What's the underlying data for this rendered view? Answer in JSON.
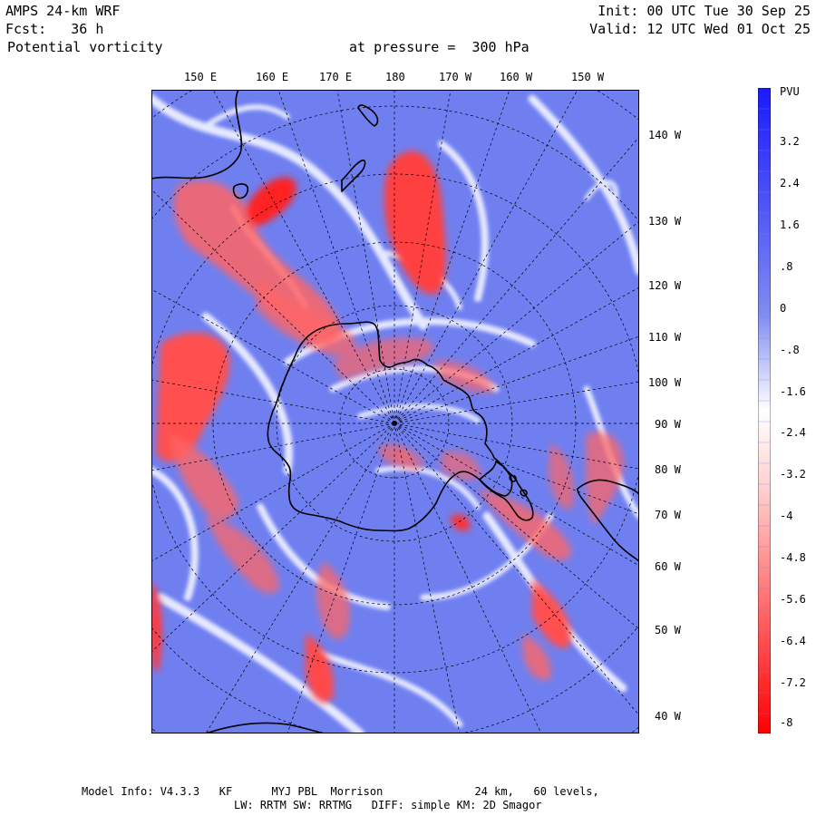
{
  "header": {
    "model": "AMPS 24-km WRF",
    "forecast": "Fcst:   36 h",
    "variable": "Potential vorticity",
    "pressure": "at pressure =  300 hPa",
    "init": "Init: 00 UTC Tue 30 Sep 25",
    "valid": "Valid: 12 UTC Wed 01 Oct 25"
  },
  "top_longitudes": [
    "150 E",
    "160 E",
    "170 E",
    "180",
    "170 W",
    "160 W",
    "150 W"
  ],
  "right_longitudes": [
    "140 W",
    "130 W",
    "120 W",
    "110 W",
    "100 W",
    "90 W",
    "80 W",
    "70 W",
    "60 W",
    "50 W",
    "40 W"
  ],
  "colorbar": {
    "unit": "PVU",
    "ticks": [
      "3.2",
      "2.4",
      "1.6",
      ".8",
      "0",
      "-.8",
      "-1.6",
      "-2.4",
      "-3.2",
      "-4",
      "-4.8",
      "-5.6",
      "-6.4",
      "-7.2",
      "-8"
    ],
    "colors": {
      "max_blue": "#1a1aff",
      "mid_blue": "#6f7ff0",
      "white": "#ffffff",
      "max_red": "#ff0000"
    }
  },
  "footer": {
    "line1": "Model Info: V4.3.3   KF      MYJ PBL  Morrison              24 km,   60 levels,",
    "line2": "LW: RRTM SW: RRTMG   DIFF: simple KM: 2D Smagor"
  },
  "colors": {
    "field_blue": "#6f7ff0",
    "anomaly_red": "#ff5a5a",
    "coast": "#000000"
  }
}
